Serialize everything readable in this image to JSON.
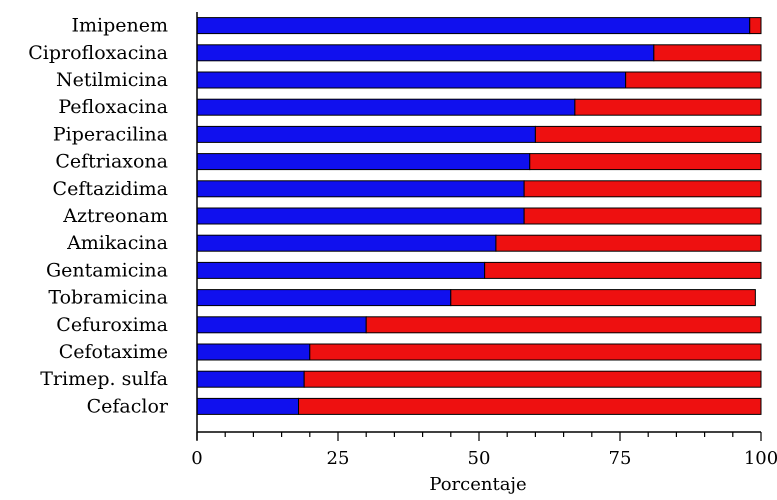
{
  "chart_data": {
    "type": "bar",
    "orientation": "horizontal",
    "stacked": true,
    "categories": [
      "Imipenem",
      "Ciprofloxacina",
      "Netilmicina",
      "Pefloxacina",
      "Piperacilina",
      "Ceftriaxona",
      "Ceftazidima",
      "Aztreonam",
      "Amikacina",
      "Gentamicina",
      "Tobramicina",
      "Cefuroxima",
      "Cefotaxime",
      "Trimep. sulfa",
      "Cefaclor"
    ],
    "series": [
      {
        "color": "#1010ee",
        "values": [
          98,
          81,
          76,
          67,
          60,
          59,
          58,
          58,
          53,
          51,
          45,
          30,
          20,
          19,
          18
        ]
      },
      {
        "color": "#ee1010",
        "values": [
          2,
          19,
          24,
          33,
          40,
          41,
          42,
          42,
          47,
          49,
          54,
          70,
          80,
          81,
          82
        ]
      }
    ],
    "xlabel": "Porcentaje",
    "xlim": [
      0,
      100
    ],
    "xticks": [
      "0",
      "25",
      "50",
      "75",
      "100"
    ],
    "grid": false,
    "legend": "none"
  }
}
